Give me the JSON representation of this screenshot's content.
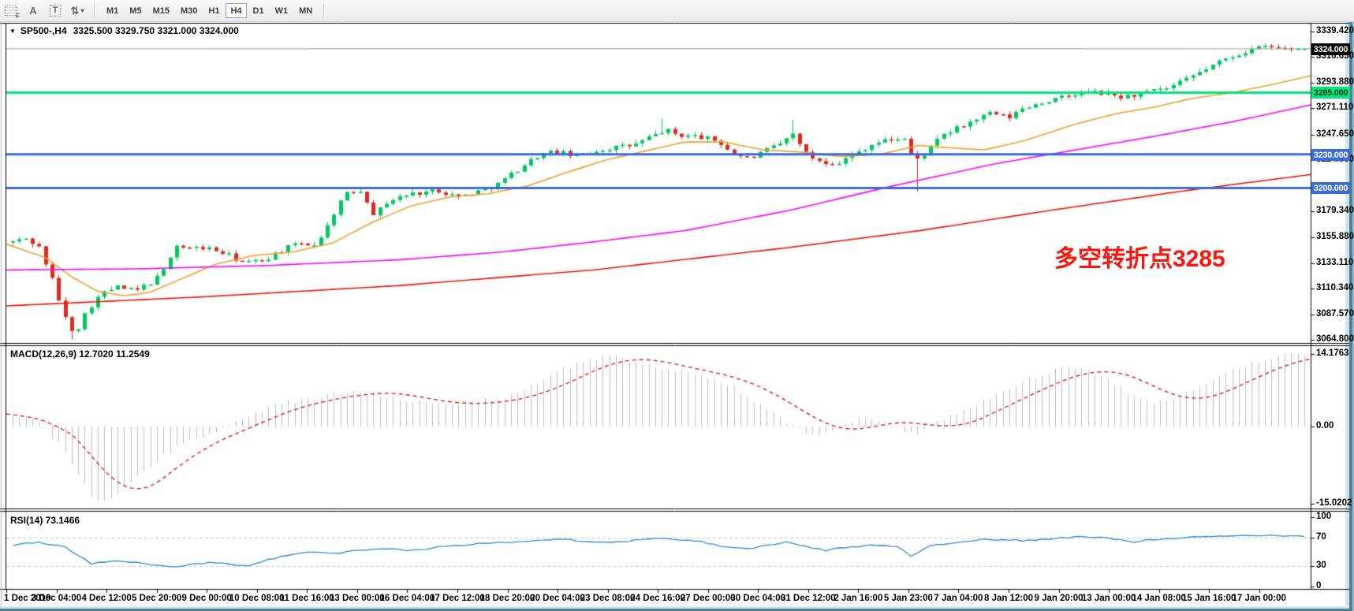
{
  "toolbar": {
    "tools": [
      {
        "name": "template-grid-icon",
        "glyph": "F",
        "style": "grid"
      },
      {
        "name": "text-label-icon",
        "glyph": "A",
        "style": "plain"
      },
      {
        "name": "text-tool-icon",
        "glyph": "T",
        "style": "boxed"
      },
      {
        "name": "arrange-cycle-icon",
        "glyph": "⇅",
        "style": "plain",
        "caret": "▾"
      }
    ],
    "timeframes": [
      "M1",
      "M5",
      "M15",
      "M30",
      "H1",
      "H4",
      "D1",
      "W1",
      "MN"
    ],
    "active_timeframe": "H4"
  },
  "chart": {
    "collapse_icon": "▼",
    "title_symbol": "SP500-,H4",
    "title_ohlc": "3325.500 3329.750 3321.000 3324.000",
    "macd_label": "MACD(12,26,9) 12.7020 11.2549",
    "rsi_label": "RSI(14) 73.1466",
    "annotation": {
      "text": "多空转折点3285",
      "color": "#fb150c"
    }
  },
  "chart_data": {
    "type": "candlestick",
    "symbol": "SP500-",
    "timeframe": "H4",
    "ohlc_current": {
      "open": 3325.5,
      "high": 3329.75,
      "low": 3321.0,
      "close": 3324.0
    },
    "price_axis": {
      "range": [
        3062.0,
        3346.4
      ],
      "ticks": [
        "3339.420",
        "3316.650",
        "3293.880",
        "3271.110",
        "3247.650",
        "3224.880",
        "3179.340",
        "3155.880",
        "3133.110",
        "3110.340",
        "3087.570",
        "3064.800"
      ]
    },
    "time_axis": {
      "labels": [
        "1 Dec 2019",
        "3 Dec 04:00",
        "4 Dec 12:00",
        "5 Dec 20:00",
        "9 Dec 00:00",
        "10 Dec 08:00",
        "11 Dec 16:00",
        "13 Dec 00:00",
        "16 Dec 04:00",
        "17 Dec 12:00",
        "18 Dec 20:00",
        "20 Dec 04:00",
        "23 Dec 08:00",
        "24 Dec 16:00",
        "27 Dec 00:00",
        "30 Dec 04:00",
        "31 Dec 12:00",
        "2 Jan 16:00",
        "5 Jan 23:00",
        "7 Jan 04:00",
        "8 Jan 12:00",
        "9 Jan 20:00",
        "13 Jan 00:00",
        "14 Jan 08:00",
        "15 Jan 16:00",
        "17 Jan 00:00"
      ]
    },
    "hlines": [
      {
        "label": "3324.000",
        "price": 3324.0,
        "type": "current-price",
        "line_color": "#9a9a9a",
        "tag_bg": "#000000",
        "tag_fg": "#ffffff",
        "width": 1
      },
      {
        "label": "3285.000",
        "price": 3285.0,
        "type": "level",
        "line_color": "#00e87c",
        "tag_bg": "#00e87c",
        "tag_fg": "#003a1d",
        "width": 3
      },
      {
        "label": "3230.000",
        "price": 3230.0,
        "type": "level",
        "line_color": "#3a6bd8",
        "tag_bg": "#3a6bd8",
        "tag_fg": "#ffffff",
        "width": 3
      },
      {
        "label": "3200.000",
        "price": 3200.0,
        "type": "level",
        "line_color": "#3a6bd8",
        "tag_bg": "#3a6bd8",
        "tag_fg": "#ffffff",
        "width": 3
      }
    ],
    "candles": {
      "count": 198,
      "up_color": "#00ca5e",
      "down_color": "#e32a1c",
      "close_anchors": [
        [
          0,
          3152
        ],
        [
          0.01,
          3155
        ],
        [
          0.02,
          3148
        ],
        [
          0.03,
          3120
        ],
        [
          0.04,
          3085
        ],
        [
          0.048,
          3070
        ],
        [
          0.058,
          3092
        ],
        [
          0.068,
          3105
        ],
        [
          0.08,
          3112
        ],
        [
          0.095,
          3108
        ],
        [
          0.11,
          3118
        ],
        [
          0.118,
          3128
        ],
        [
          0.125,
          3150
        ],
        [
          0.135,
          3146
        ],
        [
          0.15,
          3147
        ],
        [
          0.165,
          3141
        ],
        [
          0.18,
          3133
        ],
        [
          0.195,
          3136
        ],
        [
          0.21,
          3146
        ],
        [
          0.225,
          3151
        ],
        [
          0.233,
          3149
        ],
        [
          0.242,
          3162
        ],
        [
          0.252,
          3186
        ],
        [
          0.26,
          3196
        ],
        [
          0.27,
          3198
        ],
        [
          0.28,
          3176
        ],
        [
          0.29,
          3188
        ],
        [
          0.302,
          3193
        ],
        [
          0.315,
          3196
        ],
        [
          0.33,
          3198
        ],
        [
          0.345,
          3192
        ],
        [
          0.36,
          3197
        ],
        [
          0.375,
          3203
        ],
        [
          0.39,
          3216
        ],
        [
          0.405,
          3228
        ],
        [
          0.42,
          3233
        ],
        [
          0.435,
          3228
        ],
        [
          0.45,
          3233
        ],
        [
          0.465,
          3236
        ],
        [
          0.48,
          3238
        ],
        [
          0.495,
          3246
        ],
        [
          0.505,
          3252
        ],
        [
          0.515,
          3247
        ],
        [
          0.53,
          3246
        ],
        [
          0.545,
          3242
        ],
        [
          0.558,
          3231
        ],
        [
          0.57,
          3226
        ],
        [
          0.583,
          3233
        ],
        [
          0.595,
          3240
        ],
        [
          0.605,
          3249
        ],
        [
          0.615,
          3229
        ],
        [
          0.628,
          3223
        ],
        [
          0.64,
          3223
        ],
        [
          0.652,
          3231
        ],
        [
          0.665,
          3239
        ],
        [
          0.678,
          3243
        ],
        [
          0.69,
          3245
        ],
        [
          0.698,
          3223
        ],
        [
          0.708,
          3233
        ],
        [
          0.72,
          3247
        ],
        [
          0.733,
          3254
        ],
        [
          0.745,
          3261
        ],
        [
          0.758,
          3267
        ],
        [
          0.77,
          3262
        ],
        [
          0.782,
          3271
        ],
        [
          0.795,
          3276
        ],
        [
          0.808,
          3279
        ],
        [
          0.82,
          3283
        ],
        [
          0.832,
          3286
        ],
        [
          0.845,
          3284
        ],
        [
          0.858,
          3281
        ],
        [
          0.87,
          3283
        ],
        [
          0.882,
          3286
        ],
        [
          0.895,
          3289
        ],
        [
          0.908,
          3296
        ],
        [
          0.92,
          3304
        ],
        [
          0.932,
          3311
        ],
        [
          0.945,
          3318
        ],
        [
          0.958,
          3323
        ],
        [
          0.97,
          3326
        ],
        [
          0.982,
          3324
        ],
        [
          1,
          3324
        ]
      ],
      "spikes": [
        {
          "f": 0.048,
          "low": 3065
        },
        {
          "f": 0.505,
          "high": 3262
        },
        {
          "f": 0.603,
          "high": 3261
        },
        {
          "f": 0.698,
          "low": 3197
        }
      ]
    },
    "moving_averages": [
      {
        "name": "ma-fast",
        "color": "#efa030",
        "anchors": [
          [
            0,
            3150
          ],
          [
            0.03,
            3138
          ],
          [
            0.05,
            3121
          ],
          [
            0.07,
            3108
          ],
          [
            0.09,
            3104
          ],
          [
            0.11,
            3107
          ],
          [
            0.13,
            3117
          ],
          [
            0.16,
            3132
          ],
          [
            0.19,
            3140
          ],
          [
            0.22,
            3143
          ],
          [
            0.25,
            3151
          ],
          [
            0.28,
            3169
          ],
          [
            0.31,
            3184
          ],
          [
            0.34,
            3192
          ],
          [
            0.37,
            3195
          ],
          [
            0.4,
            3202
          ],
          [
            0.43,
            3214
          ],
          [
            0.46,
            3225
          ],
          [
            0.49,
            3233
          ],
          [
            0.52,
            3241
          ],
          [
            0.55,
            3241
          ],
          [
            0.58,
            3234
          ],
          [
            0.61,
            3232
          ],
          [
            0.64,
            3228
          ],
          [
            0.67,
            3230
          ],
          [
            0.7,
            3238
          ],
          [
            0.72,
            3236
          ],
          [
            0.75,
            3234
          ],
          [
            0.78,
            3242
          ],
          [
            0.82,
            3257
          ],
          [
            0.85,
            3266
          ],
          [
            0.88,
            3272
          ],
          [
            0.91,
            3280
          ],
          [
            0.94,
            3285
          ],
          [
            0.97,
            3292
          ],
          [
            1,
            3300
          ]
        ]
      },
      {
        "name": "ma-medium",
        "color": "#ff00ff",
        "anchors": [
          [
            0,
            3127
          ],
          [
            0.1,
            3128
          ],
          [
            0.2,
            3131
          ],
          [
            0.3,
            3136
          ],
          [
            0.38,
            3143
          ],
          [
            0.45,
            3152
          ],
          [
            0.52,
            3162
          ],
          [
            0.6,
            3180
          ],
          [
            0.68,
            3202
          ],
          [
            0.76,
            3222
          ],
          [
            0.82,
            3234
          ],
          [
            0.88,
            3246
          ],
          [
            0.94,
            3259
          ],
          [
            1,
            3274
          ]
        ]
      },
      {
        "name": "ma-slow",
        "color": "#f01508",
        "anchors": [
          [
            0,
            3095
          ],
          [
            0.15,
            3103
          ],
          [
            0.3,
            3113
          ],
          [
            0.45,
            3127
          ],
          [
            0.6,
            3147
          ],
          [
            0.7,
            3162
          ],
          [
            0.8,
            3180
          ],
          [
            0.9,
            3197
          ],
          [
            1,
            3212
          ]
        ]
      }
    ],
    "macd": {
      "ticks": [
        "14.1763",
        "0.00",
        "-15.0202"
      ],
      "tick_values": [
        14.1763,
        0,
        -15.0202
      ],
      "range": [
        -16.02,
        15.72
      ],
      "hist_color": "#bdbdbd",
      "signal_color": "#dd1207",
      "hist_anchors": [
        [
          0,
          2.5
        ],
        [
          0.02,
          1
        ],
        [
          0.035,
          -3
        ],
        [
          0.05,
          -9
        ],
        [
          0.062,
          -14
        ],
        [
          0.07,
          -15
        ],
        [
          0.085,
          -12.5
        ],
        [
          0.1,
          -9
        ],
        [
          0.115,
          -6
        ],
        [
          0.13,
          -3.5
        ],
        [
          0.15,
          -1.5
        ],
        [
          0.17,
          0.5
        ],
        [
          0.19,
          3
        ],
        [
          0.21,
          4.8
        ],
        [
          0.23,
          5.2
        ],
        [
          0.25,
          6.5
        ],
        [
          0.27,
          7
        ],
        [
          0.29,
          6
        ],
        [
          0.31,
          4.8
        ],
        [
          0.33,
          4.2
        ],
        [
          0.35,
          4.6
        ],
        [
          0.37,
          5.2
        ],
        [
          0.39,
          6.5
        ],
        [
          0.41,
          9
        ],
        [
          0.43,
          11.5
        ],
        [
          0.445,
          13.2
        ],
        [
          0.46,
          13.8
        ],
        [
          0.475,
          13
        ],
        [
          0.49,
          12
        ],
        [
          0.51,
          11
        ],
        [
          0.53,
          10
        ],
        [
          0.55,
          8.5
        ],
        [
          0.565,
          6.5
        ],
        [
          0.58,
          4
        ],
        [
          0.595,
          1.5
        ],
        [
          0.61,
          -0.8
        ],
        [
          0.625,
          -1.5
        ],
        [
          0.64,
          -0.5
        ],
        [
          0.65,
          1
        ],
        [
          0.662,
          2
        ],
        [
          0.675,
          1
        ],
        [
          0.688,
          -0.5
        ],
        [
          0.7,
          -1.2
        ],
        [
          0.712,
          0.5
        ],
        [
          0.725,
          1.8
        ],
        [
          0.74,
          3.5
        ],
        [
          0.755,
          5.5
        ],
        [
          0.77,
          7.5
        ],
        [
          0.785,
          9
        ],
        [
          0.8,
          10.5
        ],
        [
          0.815,
          11.5
        ],
        [
          0.83,
          11
        ],
        [
          0.845,
          9.5
        ],
        [
          0.858,
          7.5
        ],
        [
          0.87,
          5.5
        ],
        [
          0.882,
          4.5
        ],
        [
          0.895,
          5
        ],
        [
          0.91,
          6.5
        ],
        [
          0.925,
          8.5
        ],
        [
          0.94,
          10.5
        ],
        [
          0.955,
          12
        ],
        [
          0.97,
          13.2
        ],
        [
          0.985,
          14
        ],
        [
          1,
          14.18
        ]
      ]
    },
    "rsi": {
      "ticks": [
        "100",
        "70",
        "30",
        "0"
      ],
      "tick_values": [
        100,
        70,
        30,
        0
      ],
      "levels": [
        70,
        30
      ],
      "range": [
        -3.4,
        108
      ],
      "line_color": "#2f86d5",
      "level_color": "#c9c9c9",
      "anchors": [
        [
          0,
          60
        ],
        [
          0.018,
          64
        ],
        [
          0.04,
          58
        ],
        [
          0.061,
          33
        ],
        [
          0.075,
          37
        ],
        [
          0.09,
          35
        ],
        [
          0.105,
          33
        ],
        [
          0.125,
          27
        ],
        [
          0.14,
          32
        ],
        [
          0.155,
          35
        ],
        [
          0.17,
          31
        ],
        [
          0.185,
          31
        ],
        [
          0.21,
          45
        ],
        [
          0.23,
          49
        ],
        [
          0.25,
          48
        ],
        [
          0.27,
          52
        ],
        [
          0.29,
          54
        ],
        [
          0.31,
          52
        ],
        [
          0.33,
          57
        ],
        [
          0.35,
          60
        ],
        [
          0.37,
          63
        ],
        [
          0.4,
          66
        ],
        [
          0.42,
          69
        ],
        [
          0.44,
          66
        ],
        [
          0.46,
          64
        ],
        [
          0.48,
          66
        ],
        [
          0.5,
          71
        ],
        [
          0.515,
          68
        ],
        [
          0.53,
          66
        ],
        [
          0.55,
          58
        ],
        [
          0.57,
          55
        ],
        [
          0.585,
          60
        ],
        [
          0.6,
          64
        ],
        [
          0.615,
          58
        ],
        [
          0.63,
          52
        ],
        [
          0.64,
          55
        ],
        [
          0.655,
          58
        ],
        [
          0.67,
          60
        ],
        [
          0.685,
          58
        ],
        [
          0.695,
          44
        ],
        [
          0.71,
          58
        ],
        [
          0.73,
          64
        ],
        [
          0.75,
          68
        ],
        [
          0.77,
          67
        ],
        [
          0.79,
          66
        ],
        [
          0.81,
          70
        ],
        [
          0.83,
          72
        ],
        [
          0.85,
          70
        ],
        [
          0.865,
          64
        ],
        [
          0.88,
          68
        ],
        [
          0.9,
          70
        ],
        [
          0.92,
          72
        ],
        [
          0.94,
          73
        ],
        [
          0.96,
          74
        ],
        [
          0.98,
          73
        ],
        [
          1,
          73.1
        ]
      ]
    }
  }
}
